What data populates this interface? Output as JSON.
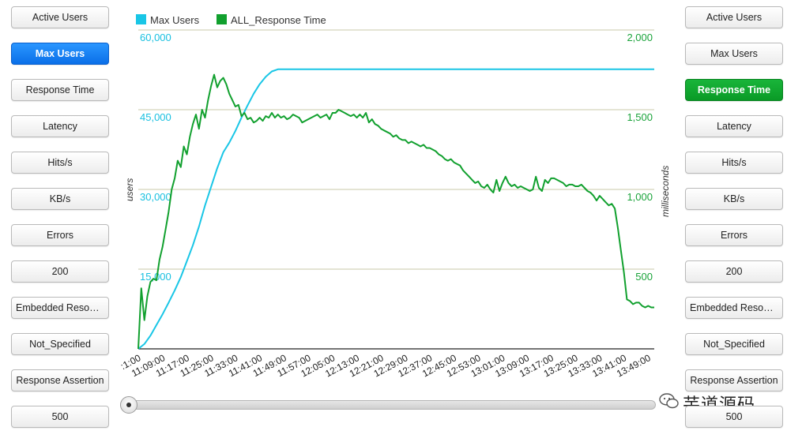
{
  "left_buttons": [
    {
      "label": "Active Users",
      "state": "normal"
    },
    {
      "label": "Max Users",
      "state": "selected"
    },
    {
      "label": "Response Time",
      "state": "normal"
    },
    {
      "label": "Latency",
      "state": "normal"
    },
    {
      "label": "Hits/s",
      "state": "normal"
    },
    {
      "label": "KB/s",
      "state": "normal"
    },
    {
      "label": "Errors",
      "state": "normal"
    },
    {
      "label": "200",
      "state": "normal"
    },
    {
      "label": "Embedded Resour...",
      "state": "normal"
    },
    {
      "label": "Not_Specified",
      "state": "normal"
    },
    {
      "label": "Response Assertion",
      "state": "normal"
    },
    {
      "label": "500",
      "state": "normal"
    }
  ],
  "right_buttons": [
    {
      "label": "Active Users",
      "state": "normal"
    },
    {
      "label": "Max Users",
      "state": "normal"
    },
    {
      "label": "Response Time",
      "state": "selected"
    },
    {
      "label": "Latency",
      "state": "normal"
    },
    {
      "label": "Hits/s",
      "state": "normal"
    },
    {
      "label": "KB/s",
      "state": "normal"
    },
    {
      "label": "Errors",
      "state": "normal"
    },
    {
      "label": "200",
      "state": "normal"
    },
    {
      "label": "Embedded Resour...",
      "state": "normal"
    },
    {
      "label": "Not_Specified",
      "state": "normal"
    },
    {
      "label": "Response Assertion",
      "state": "normal"
    },
    {
      "label": "500",
      "state": "normal"
    }
  ],
  "colors": {
    "max_users": "#19c6e6",
    "response_time": "#11a02e",
    "grid": "#c9c9a8"
  },
  "watermark": "芋道源码",
  "watermark_icon": "wechat-icon",
  "slider": {
    "value": 0
  },
  "chart_data": {
    "type": "line",
    "legend_position": "top-left",
    "legend": [
      "Max Users",
      "ALL_Response Time"
    ],
    "y_left": {
      "label": "users",
      "ticks": [
        "60,000",
        "45,000",
        "30,000",
        "15,000"
      ],
      "range": [
        0,
        60000
      ]
    },
    "y_right": {
      "label": "milliseconds",
      "ticks": [
        "2,000",
        "1,500",
        "1,000",
        "500"
      ],
      "range": [
        0,
        2000
      ]
    },
    "x_ticks": [
      ":1:00",
      "11:09:00",
      "11:17:00",
      "11:25:00",
      "11:33:00",
      "11:41:00",
      "11:49:00",
      "11:57:00",
      "12:05:00",
      "12:13:00",
      "12:21:00",
      "12:29:00",
      "12:37:00",
      "12:45:00",
      "12:53:00",
      "13:01:00",
      "13:09:00",
      "13:17:00",
      "13:25:00",
      "13:33:00",
      "13:41:00",
      "13:49:00"
    ],
    "x_range_minutes": [
      0,
      170
    ],
    "grid": true,
    "series": [
      {
        "name": "Max Users",
        "axis": "left",
        "points": [
          [
            0,
            0
          ],
          [
            2,
            900
          ],
          [
            4,
            2500
          ],
          [
            6,
            4500
          ],
          [
            8,
            6500
          ],
          [
            10,
            8700
          ],
          [
            12,
            11000
          ],
          [
            14,
            13500
          ],
          [
            16,
            16500
          ],
          [
            18,
            19500
          ],
          [
            20,
            23000
          ],
          [
            22,
            27000
          ],
          [
            24,
            30500
          ],
          [
            26,
            34000
          ],
          [
            28,
            37000
          ],
          [
            30,
            38800
          ],
          [
            32,
            41000
          ],
          [
            34,
            43500
          ],
          [
            36,
            45800
          ],
          [
            38,
            48000
          ],
          [
            40,
            49800
          ],
          [
            42,
            51200
          ],
          [
            44,
            52200
          ],
          [
            46,
            52600
          ],
          [
            170,
            52600
          ]
        ]
      },
      {
        "name": "ALL_Response Time",
        "axis": "right",
        "points": [
          [
            0,
            0
          ],
          [
            1,
            380
          ],
          [
            2,
            180
          ],
          [
            3,
            330
          ],
          [
            4,
            420
          ],
          [
            5,
            440
          ],
          [
            6,
            430
          ],
          [
            7,
            560
          ],
          [
            8,
            640
          ],
          [
            9,
            750
          ],
          [
            10,
            860
          ],
          [
            11,
            1000
          ],
          [
            12,
            1070
          ],
          [
            13,
            1180
          ],
          [
            14,
            1140
          ],
          [
            15,
            1270
          ],
          [
            16,
            1220
          ],
          [
            17,
            1330
          ],
          [
            18,
            1410
          ],
          [
            19,
            1470
          ],
          [
            20,
            1380
          ],
          [
            21,
            1500
          ],
          [
            22,
            1450
          ],
          [
            23,
            1560
          ],
          [
            24,
            1650
          ],
          [
            25,
            1720
          ],
          [
            26,
            1640
          ],
          [
            27,
            1680
          ],
          [
            28,
            1700
          ],
          [
            29,
            1660
          ],
          [
            30,
            1600
          ],
          [
            31,
            1560
          ],
          [
            32,
            1520
          ],
          [
            33,
            1530
          ],
          [
            34,
            1460
          ],
          [
            35,
            1480
          ],
          [
            36,
            1440
          ],
          [
            37,
            1450
          ],
          [
            38,
            1420
          ],
          [
            39,
            1430
          ],
          [
            40,
            1450
          ],
          [
            41,
            1430
          ],
          [
            42,
            1460
          ],
          [
            43,
            1450
          ],
          [
            44,
            1480
          ],
          [
            45,
            1450
          ],
          [
            46,
            1470
          ],
          [
            47,
            1450
          ],
          [
            48,
            1460
          ],
          [
            49,
            1440
          ],
          [
            50,
            1450
          ],
          [
            51,
            1470
          ],
          [
            52,
            1460
          ],
          [
            53,
            1450
          ],
          [
            54,
            1420
          ],
          [
            55,
            1430
          ],
          [
            56,
            1440
          ],
          [
            57,
            1450
          ],
          [
            58,
            1460
          ],
          [
            59,
            1470
          ],
          [
            60,
            1450
          ],
          [
            61,
            1460
          ],
          [
            62,
            1470
          ],
          [
            63,
            1440
          ],
          [
            64,
            1480
          ],
          [
            65,
            1480
          ],
          [
            66,
            1500
          ],
          [
            67,
            1490
          ],
          [
            68,
            1480
          ],
          [
            69,
            1470
          ],
          [
            70,
            1460
          ],
          [
            71,
            1470
          ],
          [
            72,
            1450
          ],
          [
            73,
            1470
          ],
          [
            74,
            1450
          ],
          [
            75,
            1480
          ],
          [
            76,
            1420
          ],
          [
            77,
            1440
          ],
          [
            78,
            1410
          ],
          [
            79,
            1400
          ],
          [
            80,
            1380
          ],
          [
            81,
            1370
          ],
          [
            82,
            1360
          ],
          [
            83,
            1350
          ],
          [
            84,
            1330
          ],
          [
            85,
            1340
          ],
          [
            86,
            1320
          ],
          [
            87,
            1310
          ],
          [
            88,
            1310
          ],
          [
            89,
            1290
          ],
          [
            90,
            1300
          ],
          [
            91,
            1290
          ],
          [
            92,
            1280
          ],
          [
            93,
            1270
          ],
          [
            94,
            1280
          ],
          [
            95,
            1260
          ],
          [
            96,
            1260
          ],
          [
            97,
            1250
          ],
          [
            98,
            1240
          ],
          [
            99,
            1220
          ],
          [
            100,
            1210
          ],
          [
            101,
            1190
          ],
          [
            102,
            1180
          ],
          [
            103,
            1190
          ],
          [
            104,
            1170
          ],
          [
            105,
            1160
          ],
          [
            106,
            1150
          ],
          [
            107,
            1120
          ],
          [
            108,
            1100
          ],
          [
            109,
            1080
          ],
          [
            110,
            1060
          ],
          [
            111,
            1040
          ],
          [
            112,
            1050
          ],
          [
            113,
            1020
          ],
          [
            114,
            1010
          ],
          [
            115,
            1030
          ],
          [
            116,
            1000
          ],
          [
            117,
            980
          ],
          [
            118,
            1060
          ],
          [
            119,
            990
          ],
          [
            120,
            1040
          ],
          [
            121,
            1080
          ],
          [
            122,
            1040
          ],
          [
            123,
            1020
          ],
          [
            124,
            1030
          ],
          [
            125,
            1010
          ],
          [
            126,
            1020
          ],
          [
            127,
            1010
          ],
          [
            128,
            1000
          ],
          [
            129,
            990
          ],
          [
            130,
            1000
          ],
          [
            131,
            1080
          ],
          [
            132,
            1010
          ],
          [
            133,
            990
          ],
          [
            134,
            1060
          ],
          [
            135,
            1040
          ],
          [
            136,
            1070
          ],
          [
            137,
            1070
          ],
          [
            138,
            1060
          ],
          [
            139,
            1050
          ],
          [
            140,
            1040
          ],
          [
            141,
            1020
          ],
          [
            142,
            1030
          ],
          [
            143,
            1030
          ],
          [
            144,
            1020
          ],
          [
            145,
            1020
          ],
          [
            146,
            1030
          ],
          [
            147,
            1010
          ],
          [
            148,
            990
          ],
          [
            149,
            980
          ],
          [
            150,
            960
          ],
          [
            151,
            930
          ],
          [
            152,
            960
          ],
          [
            153,
            940
          ],
          [
            154,
            920
          ],
          [
            155,
            900
          ],
          [
            156,
            910
          ],
          [
            157,
            880
          ],
          [
            158,
            760
          ],
          [
            159,
            620
          ],
          [
            160,
            480
          ],
          [
            161,
            310
          ],
          [
            162,
            300
          ],
          [
            163,
            280
          ],
          [
            164,
            290
          ],
          [
            165,
            290
          ],
          [
            166,
            270
          ],
          [
            167,
            260
          ],
          [
            168,
            270
          ],
          [
            169,
            260
          ],
          [
            170,
            260
          ]
        ]
      }
    ]
  }
}
